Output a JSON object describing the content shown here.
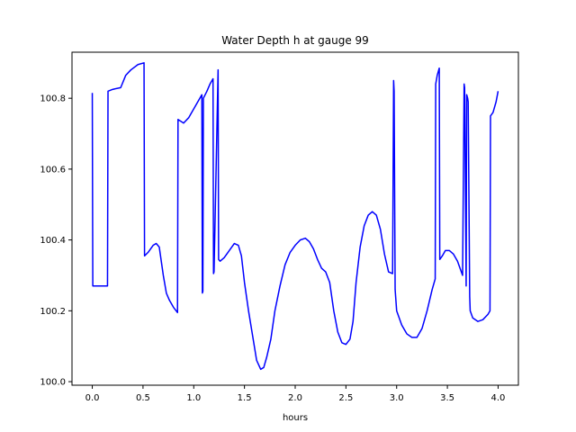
{
  "chart_data": {
    "type": "line",
    "title": "Water Depth h at gauge 99",
    "xlabel": "hours",
    "ylabel": "",
    "xlim": [
      -0.2,
      4.2
    ],
    "ylim": [
      99.99,
      100.93
    ],
    "xticks": [
      0.0,
      0.5,
      1.0,
      1.5,
      2.0,
      2.5,
      3.0,
      3.5,
      4.0
    ],
    "xtick_labels": [
      "0.0",
      "0.5",
      "1.0",
      "1.5",
      "2.0",
      "2.5",
      "3.0",
      "3.5",
      "4.0"
    ],
    "yticks": [
      100.0,
      100.2,
      100.4,
      100.6,
      100.8
    ],
    "ytick_labels": [
      "100.0",
      "100.2",
      "100.4",
      "100.6",
      "100.8"
    ],
    "grid": false,
    "colors": {
      "line": "#0000ff",
      "axes": "#000000",
      "background": "#ffffff"
    },
    "series": [
      {
        "x": [
          0.0,
          0.005,
          0.15,
          0.155,
          0.2,
          0.28,
          0.33,
          0.38,
          0.45,
          0.51,
          0.515,
          0.55,
          0.6,
          0.63,
          0.66,
          0.68,
          0.7,
          0.73,
          0.76,
          0.8,
          0.84,
          0.845,
          0.9,
          0.95,
          1.0,
          1.08,
          1.085,
          1.09,
          1.095,
          1.13,
          1.16,
          1.19,
          1.195,
          1.2,
          1.24,
          1.245,
          1.26,
          1.3,
          1.35,
          1.4,
          1.44,
          1.47,
          1.5,
          1.54,
          1.58,
          1.62,
          1.66,
          1.69,
          1.72,
          1.76,
          1.8,
          1.85,
          1.9,
          1.95,
          2.0,
          2.05,
          2.1,
          2.14,
          2.18,
          2.22,
          2.26,
          2.3,
          2.34,
          2.38,
          2.42,
          2.46,
          2.5,
          2.54,
          2.57,
          2.6,
          2.64,
          2.68,
          2.72,
          2.76,
          2.8,
          2.84,
          2.88,
          2.92,
          2.96,
          2.97,
          2.975,
          2.985,
          2.99,
          3.0,
          3.05,
          3.1,
          3.15,
          3.2,
          3.25,
          3.3,
          3.35,
          3.38,
          3.385,
          3.4,
          3.42,
          3.425,
          3.45,
          3.48,
          3.52,
          3.56,
          3.6,
          3.65,
          3.665,
          3.67,
          3.685,
          3.69,
          3.7,
          3.705,
          3.72,
          3.725,
          3.75,
          3.8,
          3.85,
          3.9,
          3.92,
          3.925,
          3.95,
          3.98,
          4.0
        ],
        "y": [
          100.815,
          100.27,
          100.27,
          100.82,
          100.825,
          100.83,
          100.865,
          100.88,
          100.895,
          100.9,
          100.355,
          100.365,
          100.385,
          100.39,
          100.38,
          100.34,
          100.3,
          100.25,
          100.23,
          100.21,
          100.195,
          100.74,
          100.73,
          100.745,
          100.77,
          100.81,
          100.25,
          100.255,
          100.8,
          100.82,
          100.84,
          100.855,
          100.305,
          100.31,
          100.88,
          100.345,
          100.34,
          100.35,
          100.37,
          100.39,
          100.385,
          100.355,
          100.28,
          100.2,
          100.13,
          100.06,
          100.035,
          100.04,
          100.07,
          100.12,
          100.2,
          100.27,
          100.33,
          100.365,
          100.385,
          100.4,
          100.405,
          100.395,
          100.375,
          100.345,
          100.32,
          100.31,
          100.28,
          100.2,
          100.14,
          100.11,
          100.105,
          100.12,
          100.17,
          100.28,
          100.38,
          100.44,
          100.47,
          100.48,
          100.47,
          100.43,
          100.36,
          100.31,
          100.305,
          100.85,
          100.82,
          100.26,
          100.24,
          100.2,
          100.16,
          100.135,
          100.125,
          100.125,
          100.15,
          100.2,
          100.26,
          100.29,
          100.84,
          100.865,
          100.885,
          100.345,
          100.355,
          100.37,
          100.37,
          100.36,
          100.34,
          100.3,
          100.84,
          100.83,
          100.27,
          100.81,
          100.8,
          100.79,
          100.24,
          100.2,
          100.18,
          100.17,
          100.175,
          100.19,
          100.2,
          100.75,
          100.76,
          100.79,
          100.82
        ]
      }
    ]
  }
}
